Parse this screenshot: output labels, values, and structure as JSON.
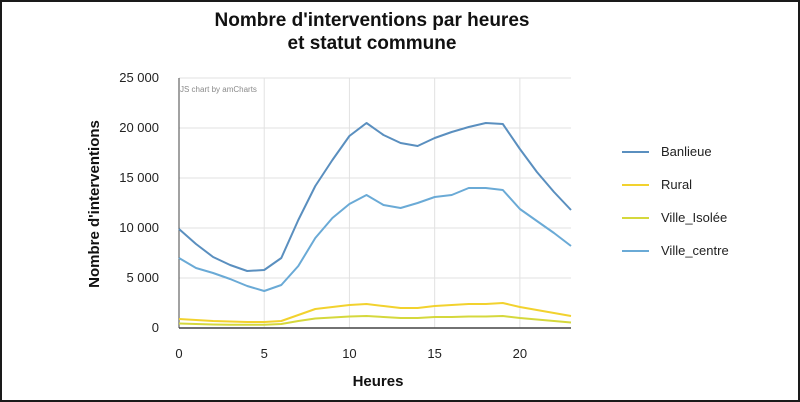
{
  "chart_data": {
    "type": "line",
    "title_line1": "Nombre d'interventions par heures",
    "title_line2": "et statut commune",
    "xlabel": "Heures",
    "ylabel": "Nombre d'interventions",
    "credit": "JS chart by amCharts",
    "x": [
      0,
      1,
      2,
      3,
      4,
      5,
      6,
      7,
      8,
      9,
      10,
      11,
      12,
      13,
      14,
      15,
      16,
      17,
      18,
      19,
      20,
      21,
      22,
      23
    ],
    "xlim": [
      0,
      23
    ],
    "ylim": [
      0,
      25000
    ],
    "x_ticks": [
      0,
      5,
      10,
      15,
      20
    ],
    "x_tick_labels": [
      "0",
      "5",
      "10",
      "15",
      "20"
    ],
    "y_ticks": [
      0,
      5000,
      10000,
      15000,
      20000,
      25000
    ],
    "y_tick_labels": [
      "0",
      "5 000",
      "10 000",
      "15 000",
      "20 000",
      "25 000"
    ],
    "grid": true,
    "legend_position": "right",
    "series": [
      {
        "name": "Banlieue",
        "color": "#5a8fbf",
        "values": [
          9900,
          8400,
          7100,
          6300,
          5700,
          5800,
          7000,
          10800,
          14200,
          16800,
          19200,
          20500,
          19300,
          18500,
          18200,
          19000,
          19600,
          20100,
          20500,
          20400,
          17900,
          15600,
          13600,
          11800
        ]
      },
      {
        "name": "Rural",
        "color": "#f2d22e",
        "values": [
          900,
          800,
          700,
          650,
          600,
          600,
          700,
          1300,
          1900,
          2100,
          2300,
          2400,
          2200,
          2000,
          2000,
          2200,
          2300,
          2400,
          2400,
          2500,
          2100,
          1800,
          1500,
          1200
        ]
      },
      {
        "name": "Ville_Isolée",
        "color": "#d5d83c",
        "values": [
          450,
          400,
          350,
          330,
          320,
          330,
          400,
          700,
          950,
          1050,
          1150,
          1200,
          1100,
          1000,
          1000,
          1100,
          1100,
          1150,
          1150,
          1200,
          1000,
          850,
          700,
          550
        ]
      },
      {
        "name": "Ville_centre",
        "color": "#6aaad6",
        "values": [
          7000,
          6000,
          5500,
          4900,
          4200,
          3700,
          4300,
          6200,
          9000,
          11000,
          12400,
          13300,
          12300,
          12000,
          12500,
          13100,
          13300,
          14000,
          14000,
          13800,
          11900,
          10700,
          9500,
          8200
        ]
      }
    ]
  }
}
